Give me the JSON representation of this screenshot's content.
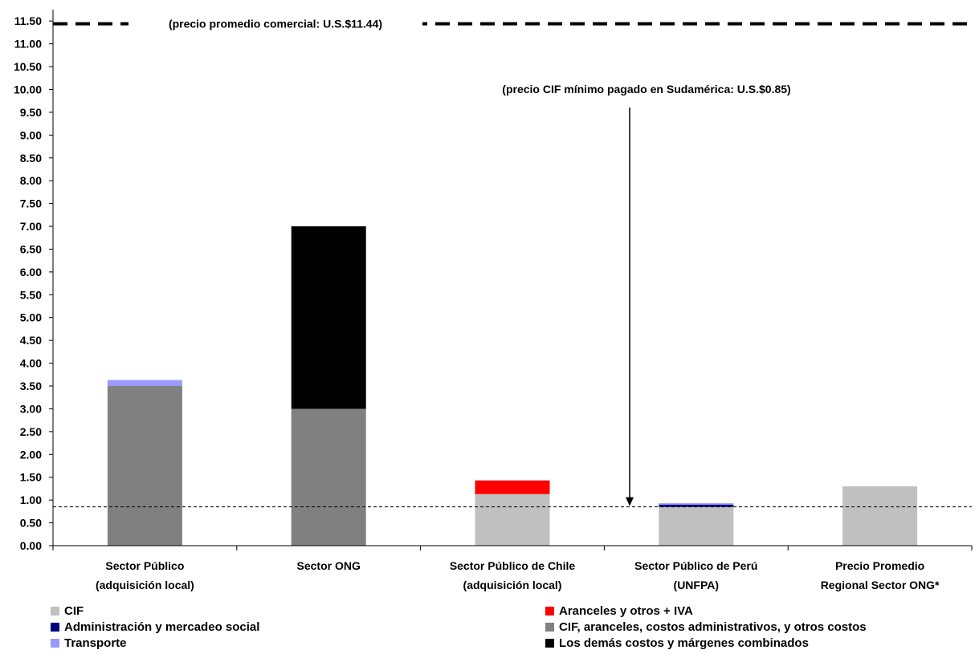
{
  "chart_data": {
    "type": "bar",
    "stacked": true,
    "categories": [
      [
        "Sector Público",
        "(adquisición local)"
      ],
      [
        "Sector ONG"
      ],
      [
        "Sector Público de Chile",
        "(adquisición local)"
      ],
      [
        "Sector Público de Perú",
        "(UNFPA)"
      ],
      [
        "Precio Promedio",
        "Regional Sector ONG*"
      ]
    ],
    "ylim": [
      0,
      11.75
    ],
    "yticks": [
      "0.00",
      "0.50",
      "1.00",
      "1.50",
      "2.00",
      "2.50",
      "3.00",
      "3.50",
      "4.00",
      "4.50",
      "5.00",
      "5.50",
      "6.00",
      "6.50",
      "7.00",
      "7.50",
      "8.00",
      "8.50",
      "9.00",
      "9.50",
      "10.00",
      "10.50",
      "11.00",
      "11.50"
    ],
    "series": [
      {
        "name": "CIF",
        "color": "#c0c0c0",
        "values": [
          0,
          0,
          1.13,
          0.85,
          1.3
        ]
      },
      {
        "name": "Aranceles y otros + IVA",
        "color": "#ff0000",
        "values": [
          0,
          0,
          0.3,
          0,
          0
        ]
      },
      {
        "name": "Administración y mercadeo social",
        "color": "#000080",
        "values": [
          0,
          0,
          0,
          0.05,
          0
        ]
      },
      {
        "name": "CIF, aranceles, costos administrativos, y otros costos",
        "color": "#808080",
        "values": [
          3.5,
          3.0,
          0,
          0,
          0
        ]
      },
      {
        "name": "Transporte",
        "color": "#9999ff",
        "values": [
          0.13,
          0,
          0,
          0.03,
          0
        ]
      },
      {
        "name": "Los demás costos y márgenes combinados",
        "color": "#000000",
        "values": [
          0,
          4.0,
          0,
          0,
          0
        ]
      }
    ],
    "reference_lines": [
      {
        "value": 11.44,
        "style": "thick-dashed",
        "label": "(precio promedio comercial: U.S.$11.44)"
      },
      {
        "value": 0.85,
        "style": "thin-dashed",
        "label": "(precio CIF mínimo pagado en Sudamérica: U.S.$0.85)"
      }
    ],
    "legend_order": [
      0,
      1,
      2,
      3,
      4,
      5
    ],
    "legend_position": "bottom"
  }
}
